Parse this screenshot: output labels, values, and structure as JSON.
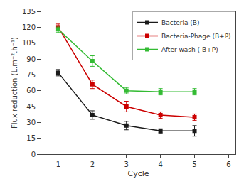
{
  "chart_data": {
    "type": "line",
    "x": [
      1,
      2,
      3,
      4,
      5
    ],
    "series": [
      {
        "name": "Bacteria (B)",
        "color": "#1a1a1a",
        "marker": "square",
        "line_style": "solid",
        "values": [
          77,
          37,
          27,
          22,
          22
        ],
        "errors": [
          3,
          4,
          4,
          2,
          5
        ]
      },
      {
        "name": "Bacteria-Phage (B+P)",
        "color": "#cc0000",
        "marker": "square",
        "line_style": "solid",
        "values": [
          120,
          66,
          45,
          37,
          35
        ],
        "errors": [
          3,
          4,
          5,
          3,
          3
        ]
      },
      {
        "name": "After wash (-B+P)",
        "color": "#33bb33",
        "marker": "square",
        "line_style": "solid",
        "values": [
          118,
          88,
          60,
          59,
          59
        ],
        "errors": [
          3,
          5,
          3,
          3,
          3
        ]
      }
    ],
    "xlabel": "Cycle",
    "ylabel": "Flux reduction (L.m⁻².h⁻¹)",
    "xlim": [
      0.5,
      6.2
    ],
    "xticks": [
      1,
      2,
      3,
      4,
      5,
      6
    ],
    "ylim": [
      0,
      135
    ],
    "yticks": [
      0,
      15,
      30,
      45,
      60,
      75,
      90,
      105,
      120,
      135
    ],
    "grid": false,
    "legend": "upper right"
  }
}
